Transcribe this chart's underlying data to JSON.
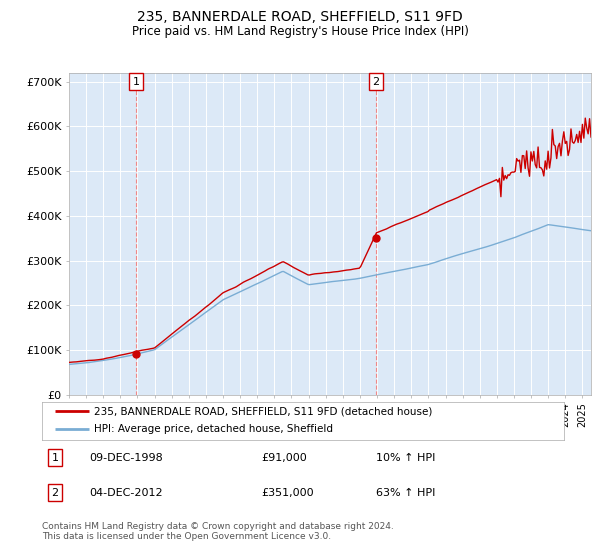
{
  "title": "235, BANNERDALE ROAD, SHEFFIELD, S11 9FD",
  "subtitle": "Price paid vs. HM Land Registry's House Price Index (HPI)",
  "background_color": "#ffffff",
  "plot_bg_color": "#dce9f7",
  "ylim": [
    0,
    720000
  ],
  "yticks": [
    0,
    100000,
    200000,
    300000,
    400000,
    500000,
    600000,
    700000
  ],
  "ytick_labels": [
    "£0",
    "£100K",
    "£200K",
    "£300K",
    "£400K",
    "£500K",
    "£600K",
    "£700K"
  ],
  "sale1": {
    "date_label": "09-DEC-1998",
    "price": 91000,
    "hpi_pct": "10%",
    "marker_year": 1998.92
  },
  "sale2": {
    "date_label": "04-DEC-2012",
    "price": 351000,
    "hpi_pct": "63%",
    "marker_year": 2012.92
  },
  "legend_line1": "235, BANNERDALE ROAD, SHEFFIELD, S11 9FD (detached house)",
  "legend_line2": "HPI: Average price, detached house, Sheffield",
  "footnote": "Contains HM Land Registry data © Crown copyright and database right 2024.\nThis data is licensed under the Open Government Licence v3.0.",
  "red_color": "#cc0000",
  "blue_color": "#7aadd4",
  "xlim_start": 1995,
  "xlim_end": 2025.5
}
